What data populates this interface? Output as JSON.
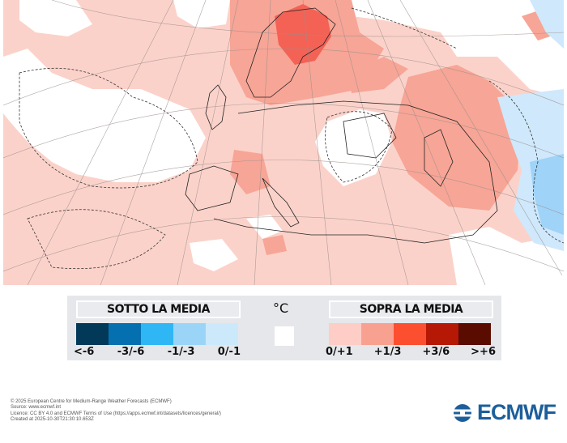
{
  "map": {
    "colors": {
      "background": "#fbd2ca",
      "white": "#ffffff",
      "moderate": "#f7a596",
      "strong": "#f2564a",
      "cold_light": "#cfe8fb",
      "cold": "#9fd3f7"
    }
  },
  "legend": {
    "below_title": "SOTTO LA MEDIA",
    "above_title": "SOPRA LA MEDIA",
    "unit": "°C",
    "below": [
      {
        "label": "<-6",
        "color": "#023858"
      },
      {
        "label": "-3/-6",
        "color": "#0570b0"
      },
      {
        "label": "-1/-3",
        "color": "#2fb7f5"
      },
      {
        "label": "0/-1",
        "color": "#9ad5f8"
      },
      {
        "label": "",
        "color": "#cce9fb"
      }
    ],
    "neutral_color": "#ffffff",
    "above": [
      {
        "label": "0/+1",
        "color": "#fdcdc6"
      },
      {
        "label": "+1/3",
        "color": "#f9a190"
      },
      {
        "label": "+3/6",
        "color": "#fc4f30"
      },
      {
        "label": ">+6",
        "color": "#b51804"
      },
      {
        "label": "",
        "color": "#5a0c00"
      }
    ],
    "below_labels": [
      "<-6",
      "-3/-6",
      "-1/-3",
      "0/-1"
    ],
    "above_labels": [
      "0/+1",
      "+1/3",
      "+3/6",
      ">+6"
    ]
  },
  "footer": {
    "lines": [
      "© 2025 European Centre for Medium-Range Weather Forecasts (ECMWF)",
      "Source: www.ecmwf.int",
      "Licence: CC BY 4.0 and ECMWF Terms of Use (https://apps.ecmwf.int/datasets/licences/general/)",
      "Created at 2025-10-30T21:30:10.653Z"
    ]
  },
  "logo": {
    "text": "ECMWF",
    "color": "#1d5f9b"
  }
}
